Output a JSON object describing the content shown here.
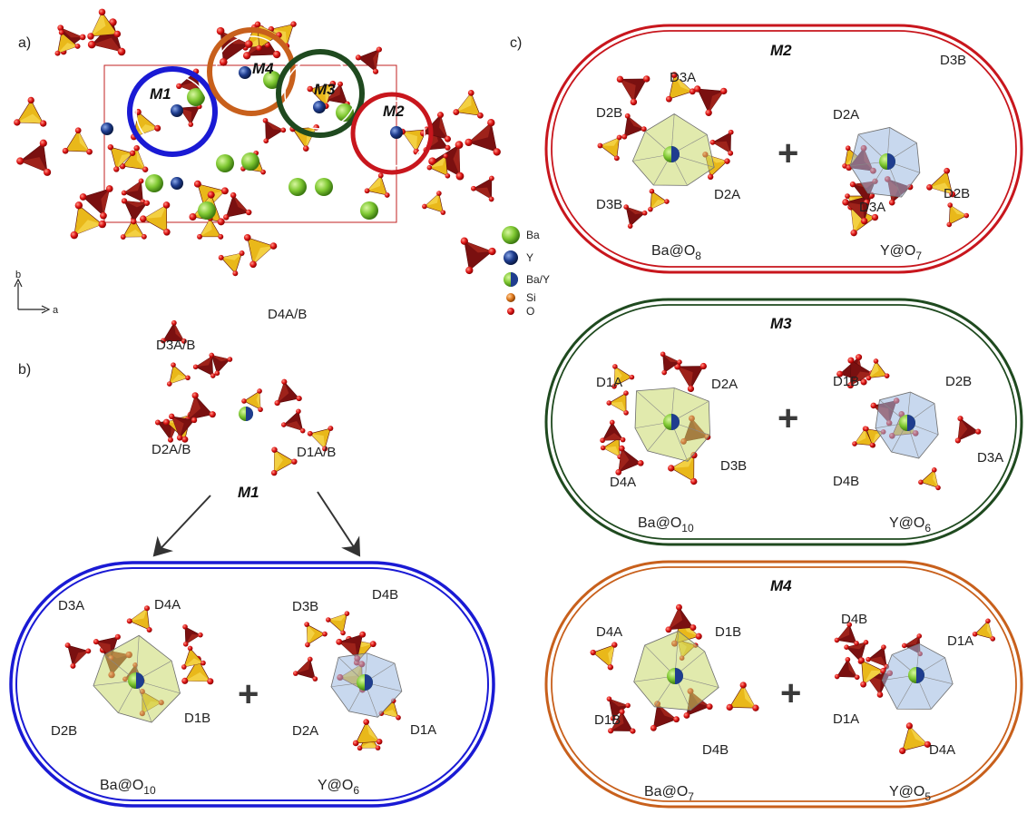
{
  "panels": {
    "a": "a)",
    "b": "b)",
    "c": "c)"
  },
  "axes": {
    "b": "b",
    "a": "a"
  },
  "overview": {
    "sites": [
      "M1",
      "M4",
      "M3",
      "M2"
    ]
  },
  "legend": {
    "items": [
      {
        "label": "Ba",
        "color": "#7fc832"
      },
      {
        "label": "Y",
        "color": "#1f3d8f"
      },
      {
        "label": "Ba/Y",
        "color": "#5a8f46"
      },
      {
        "label": "Si",
        "color": "#e07a1f"
      },
      {
        "label": "O",
        "color": "#e01818"
      }
    ]
  },
  "colors": {
    "m1": "#1a1ad4",
    "m2": "#c8161d",
    "m3": "#1f4a1f",
    "m4": "#c8601c",
    "tet_dark": "#7a1010",
    "tet_light": "#e9b81a",
    "oxygen": "#e01818"
  },
  "m1_detail": {
    "title": "M1",
    "labels": {
      "d4": "D4A/B",
      "d3": "D3A/B",
      "d2": "D2A/B",
      "d1": "D1A/B"
    }
  },
  "m1_box": {
    "left": {
      "labels": [
        "D3A",
        "D4A",
        "D2B",
        "D1B"
      ],
      "formula": "Ba@O",
      "sub": "10"
    },
    "right": {
      "labels": [
        "D4B",
        "D3B",
        "D2A",
        "D1A"
      ],
      "formula": "Y@O",
      "sub": "6"
    },
    "plus": "+"
  },
  "m2_box": {
    "title": "M2",
    "left": {
      "labels": [
        "D3A",
        "D2B",
        "D3B",
        "D2A"
      ],
      "formula": "Ba@O",
      "sub": "8"
    },
    "right": {
      "labels": [
        "D3B",
        "D2A",
        "D3A",
        "D2B"
      ],
      "formula": "Y@O",
      "sub": "7"
    },
    "plus": "+"
  },
  "m3_box": {
    "title": "M3",
    "left": {
      "labels": [
        "D1A",
        "D2A",
        "D4A",
        "D3B"
      ],
      "formula": "Ba@O",
      "sub": "10"
    },
    "right": {
      "labels": [
        "D1B",
        "D2B",
        "D4B",
        "D3A"
      ],
      "formula": "Y@O",
      "sub": "6"
    },
    "plus": "+"
  },
  "m4_box": {
    "title": "M4",
    "left": {
      "labels": [
        "D4A",
        "D1B",
        "D1B",
        "D4B"
      ],
      "formula": "Ba@O",
      "sub": "7"
    },
    "right": {
      "labels": [
        "D4B",
        "D1A",
        "D1A",
        "D4A"
      ],
      "formula": "Y@O",
      "sub": "5"
    },
    "plus": "+"
  }
}
